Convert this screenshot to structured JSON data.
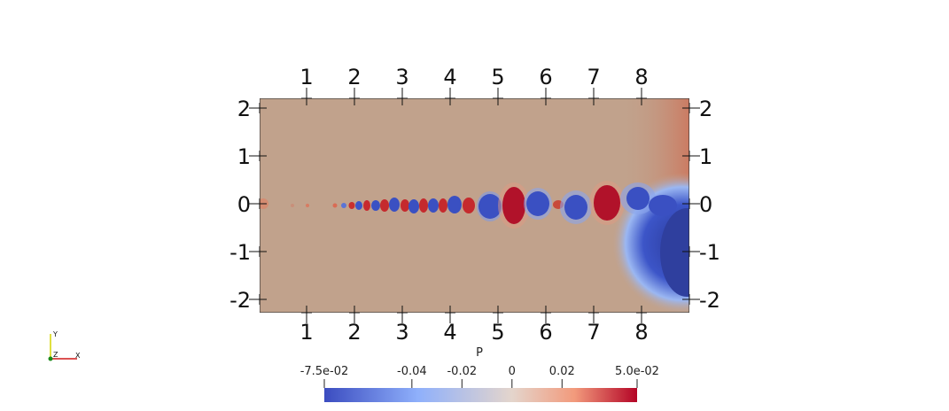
{
  "axes": {
    "x_ticks": [
      "1",
      "2",
      "3",
      "4",
      "5",
      "6",
      "7",
      "8"
    ],
    "y_ticks_left": [
      "2",
      "1",
      "0",
      "-1",
      "-2"
    ],
    "y_ticks_right": [
      "2",
      "1",
      "0",
      "-1",
      "-2"
    ]
  },
  "colorbar": {
    "title": "P",
    "labels": [
      "-7.5e-02",
      "-0.04",
      "-0.02",
      "0",
      "0.02",
      "5.0e-02"
    ],
    "range": [
      -0.075,
      0.05
    ],
    "colormap": "cool-to-warm",
    "colors": {
      "low": "#3b4cc0",
      "mid": "#dddddd",
      "high": "#b40426"
    }
  },
  "orientation_triad": {
    "y": "Y",
    "z": "Z",
    "x": "X"
  },
  "colors": {
    "background": "#c0a08a",
    "frame": "#333333"
  }
}
